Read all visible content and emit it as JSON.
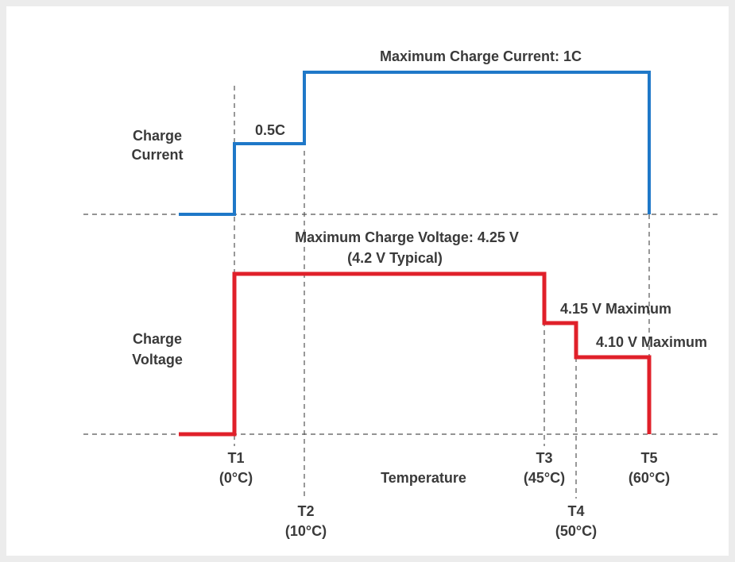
{
  "current": {
    "label": [
      "Charge",
      "Current"
    ],
    "maximum": "Maximum Charge Current: 1C",
    "reduced": "0.5C"
  },
  "voltage": {
    "label": [
      "Charge",
      "Voltage"
    ],
    "maximum": "Maximum Charge Voltage: 4.25 V",
    "typical": "(4.2 V Typical)",
    "step1": "4.15 V Maximum",
    "step2": "4.10 V Maximum"
  },
  "axis_label": "Temperature",
  "points": [
    {
      "name": "T1",
      "temp": "(0°C)"
    },
    {
      "name": "T2",
      "temp": "(10°C)"
    },
    {
      "name": "T3",
      "temp": "(45°C)"
    },
    {
      "name": "T4",
      "temp": "(50°C)"
    },
    {
      "name": "T5",
      "temp": "(60°C)"
    }
  ]
}
